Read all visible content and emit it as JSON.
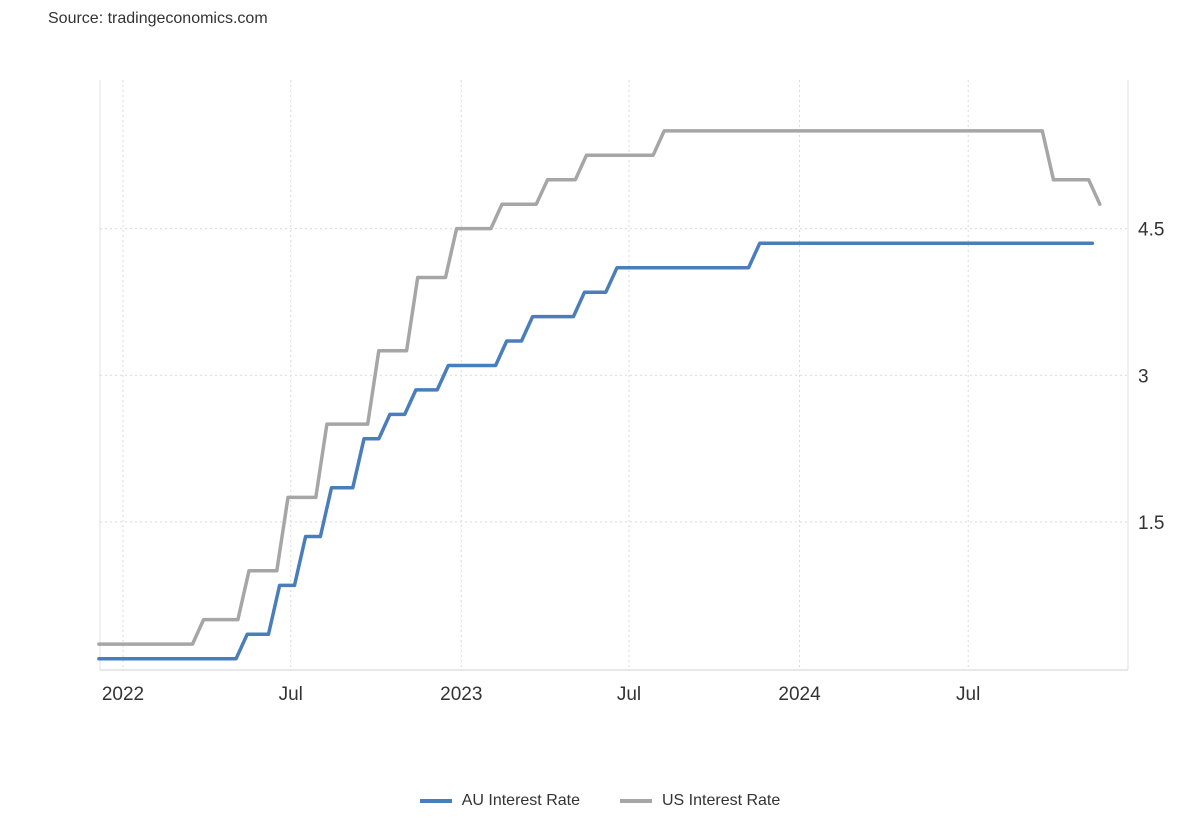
{
  "source": "Source: tradingeconomics.com",
  "chart_data": {
    "type": "line",
    "title": "",
    "xlabel": "",
    "ylabel": "",
    "x_range": [
      "2021-12-06",
      "2024-11-12"
    ],
    "ylim": [
      0,
      6
    ],
    "y_ticks": [
      1.5,
      3,
      4.5
    ],
    "y_tick_labels": [
      "1.5",
      "3",
      "4.5"
    ],
    "y_axis_side": "right",
    "x_ticks": [
      "2022-01-01",
      "2022-07-01",
      "2023-01-01",
      "2023-07-01",
      "2024-01-01",
      "2024-07-01"
    ],
    "x_tick_labels": [
      "2022",
      "Jul",
      "2023",
      "Jul",
      "2024",
      "Jul"
    ],
    "grid": true,
    "legend_placement": "bottom",
    "series": [
      {
        "name": "AU Interest Rate",
        "color": "#4a7ebb",
        "points": [
          [
            "2021-12-06",
            0.1
          ],
          [
            "2022-05-03",
            0.35
          ],
          [
            "2022-06-07",
            0.85
          ],
          [
            "2022-07-05",
            1.35
          ],
          [
            "2022-08-02",
            1.85
          ],
          [
            "2022-09-06",
            2.35
          ],
          [
            "2022-10-04",
            2.6
          ],
          [
            "2022-11-01",
            2.85
          ],
          [
            "2022-12-06",
            3.1
          ],
          [
            "2023-02-07",
            3.35
          ],
          [
            "2023-03-07",
            3.6
          ],
          [
            "2023-05-02",
            3.85
          ],
          [
            "2023-06-06",
            4.1
          ],
          [
            "2023-11-07",
            4.35
          ],
          [
            "2024-11-12",
            4.35
          ]
        ]
      },
      {
        "name": "US Interest Rate",
        "color": "#a6a6a6",
        "points": [
          [
            "2021-12-06",
            0.25
          ],
          [
            "2022-03-17",
            0.5
          ],
          [
            "2022-05-05",
            1.0
          ],
          [
            "2022-06-16",
            1.75
          ],
          [
            "2022-07-28",
            2.5
          ],
          [
            "2022-09-22",
            3.25
          ],
          [
            "2022-11-03",
            4.0
          ],
          [
            "2022-12-15",
            4.5
          ],
          [
            "2023-02-02",
            4.75
          ],
          [
            "2023-03-23",
            5.0
          ],
          [
            "2023-05-04",
            5.25
          ],
          [
            "2023-07-27",
            5.5
          ],
          [
            "2024-09-19",
            5.0
          ],
          [
            "2024-11-08",
            4.75
          ]
        ]
      }
    ]
  }
}
